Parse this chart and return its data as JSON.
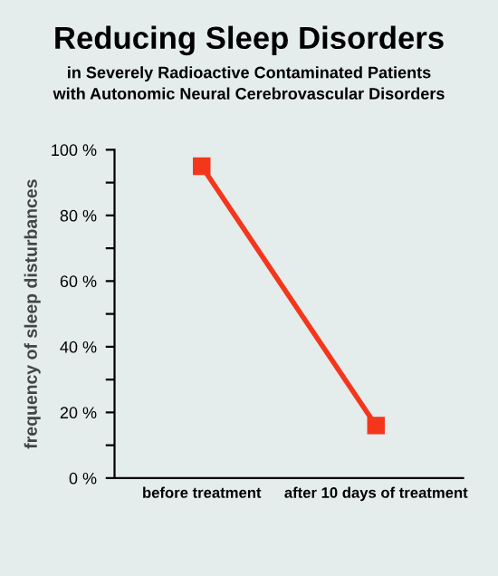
{
  "chart_data": {
    "type": "line",
    "title": "Reducing Sleep Disorders",
    "subtitle": "in Severely Radioactive Contaminated Patients\nwith Autonomic Neural Cerebrovascular Disorders",
    "ylabel": "frequency of sleep disturbances",
    "categories": [
      "before treatment",
      "after 10 days of treatment"
    ],
    "series": [
      {
        "color": "#f4361c",
        "values": [
          95,
          16
        ]
      }
    ],
    "ylim": [
      0,
      100
    ],
    "yticks": [
      {
        "value": 0,
        "label": "0 %"
      },
      {
        "value": 10,
        "label": null
      },
      {
        "value": 20,
        "label": "20 %"
      },
      {
        "value": 30,
        "label": null
      },
      {
        "value": 40,
        "label": "40 %"
      },
      {
        "value": 50,
        "label": null
      },
      {
        "value": 60,
        "label": "60 %"
      },
      {
        "value": 70,
        "label": null
      },
      {
        "value": 80,
        "label": "80 %"
      },
      {
        "value": 90,
        "label": null
      },
      {
        "value": 100,
        "label": "100 %"
      }
    ],
    "marker": "square",
    "grid": false,
    "legend": false
  }
}
